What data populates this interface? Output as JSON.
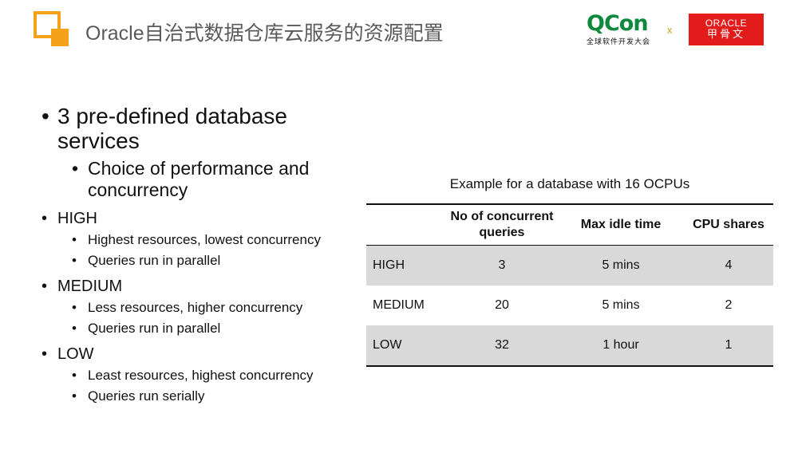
{
  "header": {
    "title": "Oracle自治式数据仓库云服务的资源配置",
    "qcon_word": "QCon",
    "qcon_sub": "全球软件开发大会",
    "cross": "x",
    "oracle_en": "ORACLE",
    "oracle_cn": "甲骨文",
    "accent_color": "#f5a21b",
    "oracle_red": "#e21b1b",
    "qcon_green": "#0f8a3c"
  },
  "bullets": {
    "main_line1": "3 pre-defined database",
    "main_line2": "services",
    "sub_line1": "Choice of performance and",
    "sub_line2": "concurrency",
    "high": "HIGH",
    "high_1": "Highest resources, lowest concurrency",
    "high_2": "Queries run in parallel",
    "medium": "MEDIUM",
    "medium_1": "Less resources, higher concurrency",
    "medium_2": "Queries run in parallel",
    "low": "LOW",
    "low_1": "Least resources, highest concurrency",
    "low_2": "Queries run serially",
    "dot": "•"
  },
  "table": {
    "caption": "Example for a database with 16 OCPUs",
    "headers": [
      "",
      "No of concurrent queries",
      "Max idle time",
      "CPU shares"
    ],
    "rows": [
      [
        "HIGH",
        "3",
        "5 mins",
        "4"
      ],
      [
        "MEDIUM",
        "20",
        "5 mins",
        "2"
      ],
      [
        "LOW",
        "32",
        "1 hour",
        "1"
      ]
    ],
    "shade_color": "#d9d9d9"
  }
}
